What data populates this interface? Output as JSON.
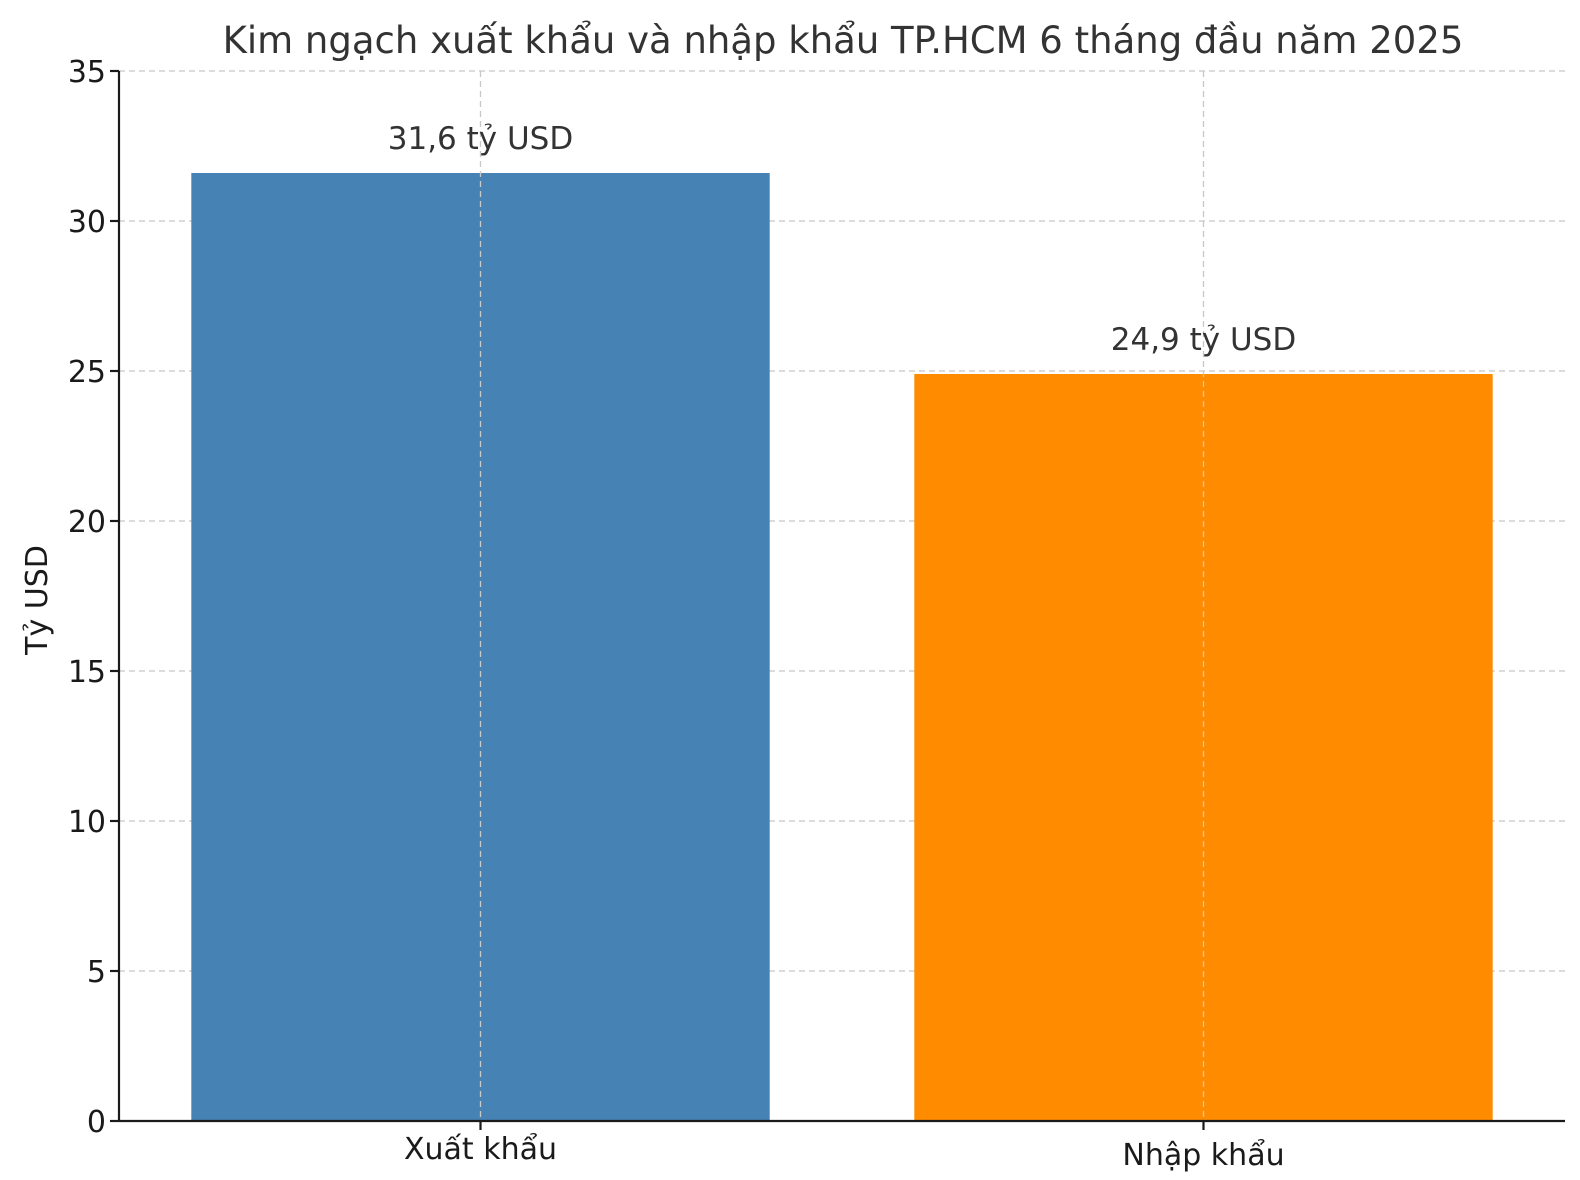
{
  "chart_data": {
    "type": "bar",
    "title": "Kim ngạch xuất khẩu và nhập khẩu TP.HCM 6 tháng đầu năm 2025",
    "ylabel": "Tỷ USD",
    "xlabel": "",
    "categories": [
      "Xuất khẩu",
      "Nhập khẩu"
    ],
    "values": [
      31.6,
      24.9
    ],
    "data_labels": [
      "31,6 tỷ USD",
      "24,9 tỷ USD"
    ],
    "colors": [
      "#4682b4",
      "#ff8c00"
    ],
    "ylim": [
      0,
      35
    ],
    "yticks": [
      0,
      5,
      10,
      15,
      20,
      25,
      30,
      35
    ],
    "grid": true
  }
}
